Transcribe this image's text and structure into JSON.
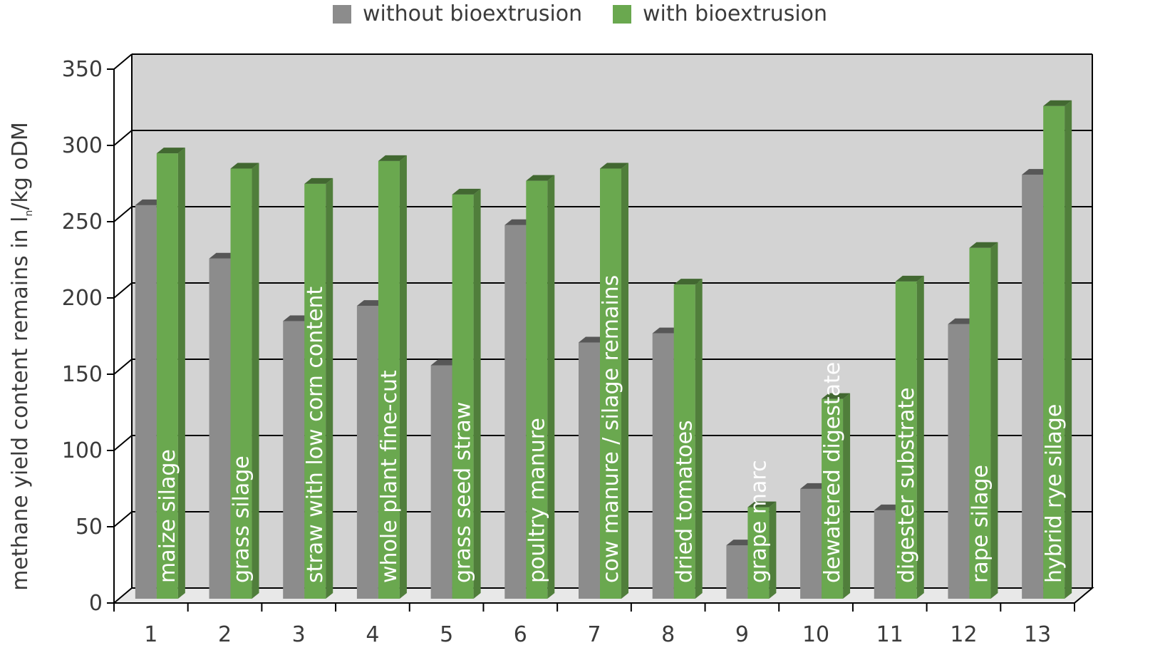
{
  "legend": {
    "without_label": "without bioextrusion",
    "with_label": "with bioextrusion"
  },
  "colors": {
    "without": "#8c8c8c",
    "with": "#6aa84f",
    "background": "#d3d3d3"
  },
  "chart_data": {
    "type": "bar",
    "ylabel_main": "methane yield content remains in l",
    "ylabel_sub": "n",
    "ylabel_rest": "/kg oDM",
    "ylim": [
      0,
      350
    ],
    "yticks": [
      "0",
      "50",
      "100",
      "150",
      "200",
      "250",
      "300",
      "350"
    ],
    "grid": true,
    "legend_position": "top-center",
    "categories": [
      "1",
      "2",
      "3",
      "4",
      "5",
      "6",
      "7",
      "8",
      "9",
      "10",
      "11",
      "12",
      "13"
    ],
    "bar_labels": [
      "maize silage",
      "grass silage",
      "straw with low corn content",
      "whole plant fine-cut",
      "grass seed straw",
      "poultry manure",
      "cow manure / silage remains",
      "dried tomatoes",
      "grape marc",
      "dewatered digestate",
      "digester substrate",
      "rape silage",
      "hybrid rye silage"
    ],
    "series": [
      {
        "name": "without bioextrusion",
        "values": [
          258,
          223,
          182,
          192,
          153,
          245,
          168,
          174,
          35,
          72,
          58,
          180,
          278
        ]
      },
      {
        "name": "with bioextrusion",
        "values": [
          292,
          282,
          272,
          287,
          265,
          274,
          282,
          206,
          60,
          131,
          208,
          230,
          323
        ]
      }
    ]
  }
}
